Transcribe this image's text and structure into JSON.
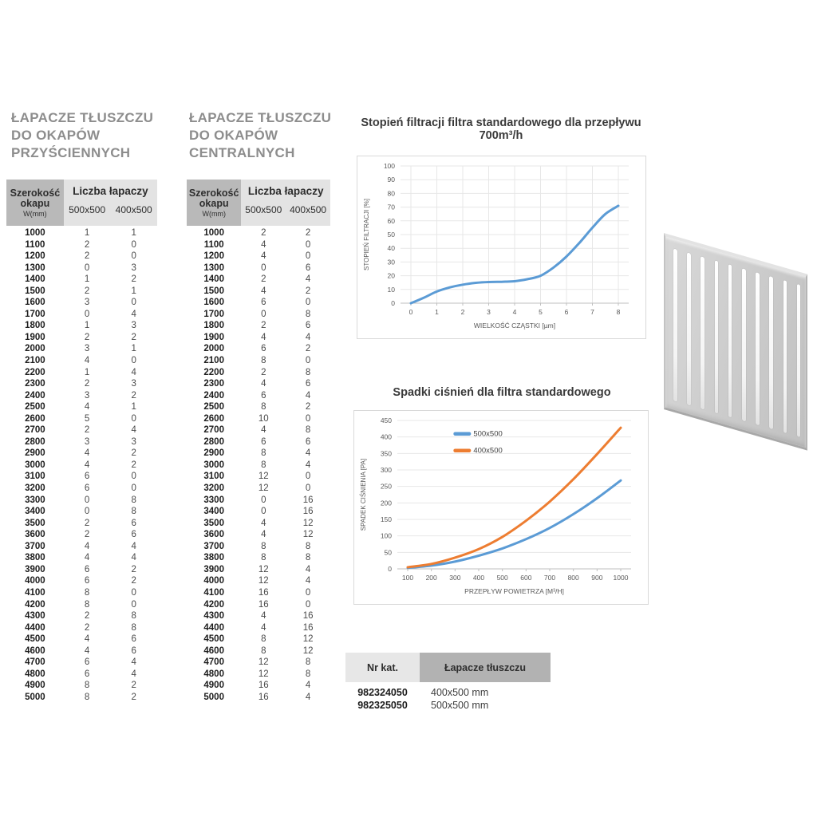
{
  "accent_colors": {
    "blue": "#5b9bd5",
    "orange": "#ed7d31",
    "header_dark": "#b9b9b9",
    "header_light": "#e3e3e3"
  },
  "hood_tables": [
    {
      "title_line1": "ŁAPACZE TŁUSZCZU",
      "title_line2": "DO OKAPÓW",
      "title_line3": "PRZYŚCIENNYCH",
      "header": {
        "col1_title": "Szerokość okapu",
        "col1_sub": "W(mm)",
        "group": "Liczba łapaczy",
        "col2": "500x500",
        "col3": "400x500"
      },
      "rows": [
        [
          1000,
          1,
          1
        ],
        [
          1100,
          2,
          0
        ],
        [
          1200,
          2,
          0
        ],
        [
          1300,
          0,
          3
        ],
        [
          1400,
          1,
          2
        ],
        [
          1500,
          2,
          1
        ],
        [
          1600,
          3,
          0
        ],
        [
          1700,
          0,
          4
        ],
        [
          1800,
          1,
          3
        ],
        [
          1900,
          2,
          2
        ],
        [
          2000,
          3,
          1
        ],
        [
          2100,
          4,
          0
        ],
        [
          2200,
          1,
          4
        ],
        [
          2300,
          2,
          3
        ],
        [
          2400,
          3,
          2
        ],
        [
          2500,
          4,
          1
        ],
        [
          2600,
          5,
          0
        ],
        [
          2700,
          2,
          4
        ],
        [
          2800,
          3,
          3
        ],
        [
          2900,
          4,
          2
        ],
        [
          3000,
          4,
          2
        ],
        [
          3100,
          6,
          0
        ],
        [
          3200,
          6,
          0
        ],
        [
          3300,
          0,
          8
        ],
        [
          3400,
          0,
          8
        ],
        [
          3500,
          2,
          6
        ],
        [
          3600,
          2,
          6
        ],
        [
          3700,
          4,
          4
        ],
        [
          3800,
          4,
          4
        ],
        [
          3900,
          6,
          2
        ],
        [
          4000,
          6,
          2
        ],
        [
          4100,
          8,
          0
        ],
        [
          4200,
          8,
          0
        ],
        [
          4300,
          2,
          8
        ],
        [
          4400,
          2,
          8
        ],
        [
          4500,
          4,
          6
        ],
        [
          4600,
          4,
          6
        ],
        [
          4700,
          6,
          4
        ],
        [
          4800,
          6,
          4
        ],
        [
          4900,
          8,
          2
        ],
        [
          5000,
          8,
          2
        ]
      ]
    },
    {
      "title_line1": "ŁAPACZE TŁUSZCZU",
      "title_line2": "DO OKAPÓW",
      "title_line3": "CENTRALNYCH",
      "header": {
        "col1_title": "Szerokość okapu",
        "col1_sub": "W(mm)",
        "group": "Liczba łapaczy",
        "col2": "500x500",
        "col3": "400x500"
      },
      "rows": [
        [
          1000,
          2,
          2
        ],
        [
          1100,
          4,
          0
        ],
        [
          1200,
          4,
          0
        ],
        [
          1300,
          0,
          6
        ],
        [
          1400,
          2,
          4
        ],
        [
          1500,
          4,
          2
        ],
        [
          1600,
          6,
          0
        ],
        [
          1700,
          0,
          8
        ],
        [
          1800,
          2,
          6
        ],
        [
          1900,
          4,
          4
        ],
        [
          2000,
          6,
          2
        ],
        [
          2100,
          8,
          0
        ],
        [
          2200,
          2,
          8
        ],
        [
          2300,
          4,
          6
        ],
        [
          2400,
          6,
          4
        ],
        [
          2500,
          8,
          2
        ],
        [
          2600,
          10,
          0
        ],
        [
          2700,
          4,
          8
        ],
        [
          2800,
          6,
          6
        ],
        [
          2900,
          8,
          4
        ],
        [
          3000,
          8,
          4
        ],
        [
          3100,
          12,
          0
        ],
        [
          3200,
          12,
          0
        ],
        [
          3300,
          0,
          16
        ],
        [
          3400,
          0,
          16
        ],
        [
          3500,
          4,
          12
        ],
        [
          3600,
          4,
          12
        ],
        [
          3700,
          8,
          8
        ],
        [
          3800,
          8,
          8
        ],
        [
          3900,
          12,
          4
        ],
        [
          4000,
          12,
          4
        ],
        [
          4100,
          16,
          0
        ],
        [
          4200,
          16,
          0
        ],
        [
          4300,
          4,
          16
        ],
        [
          4400,
          4,
          16
        ],
        [
          4500,
          8,
          12
        ],
        [
          4600,
          8,
          12
        ],
        [
          4700,
          12,
          8
        ],
        [
          4800,
          12,
          8
        ],
        [
          4900,
          16,
          4
        ],
        [
          5000,
          16,
          4
        ]
      ]
    }
  ],
  "chart_data": [
    {
      "type": "line",
      "title": "Stopień filtracji filtra standardowego dla przepływu 700m³/h",
      "xlabel": "WIELKOŚĆ CZĄSTKI [µm]",
      "ylabel": "STOPIEŃ FILTRACJI [%]",
      "xlim": [
        0,
        8
      ],
      "ylim": [
        0,
        100
      ],
      "x_ticks": [
        0,
        1,
        2,
        3,
        4,
        5,
        6,
        7,
        8
      ],
      "y_ticks": [
        0,
        10,
        20,
        30,
        40,
        50,
        60,
        70,
        80,
        90,
        100
      ],
      "grid": "both",
      "legend": false,
      "series": [
        {
          "color": "#5b9bd5",
          "x": [
            0,
            0.5,
            1,
            1.5,
            2,
            2.5,
            3,
            3.5,
            4,
            4.5,
            5,
            5.5,
            6,
            6.5,
            7,
            7.5,
            8
          ],
          "y": [
            0,
            4,
            8.5,
            11.5,
            13.5,
            14.8,
            15.4,
            15.6,
            16,
            17.5,
            20,
            26,
            34,
            44,
            55,
            65,
            71
          ]
        }
      ]
    },
    {
      "type": "line",
      "title": "Spadki ciśnień dla filtra standardowego",
      "xlabel": "PRZEPŁYW POWIETRZA [M³/H]",
      "ylabel": "SPADEK CIŚNIENIA [PA]",
      "xlim": [
        100,
        1000
      ],
      "ylim": [
        0,
        450
      ],
      "x_ticks": [
        100,
        200,
        300,
        400,
        500,
        600,
        700,
        800,
        900,
        1000
      ],
      "y_ticks": [
        0,
        50,
        100,
        150,
        200,
        250,
        300,
        350,
        400,
        450
      ],
      "grid": "horizontal",
      "legend": true,
      "legend_position": "inside-top",
      "series": [
        {
          "name": "500x500",
          "color": "#5b9bd5",
          "x": [
            100,
            200,
            300,
            400,
            500,
            600,
            700,
            800,
            900,
            1000
          ],
          "y": [
            3,
            10,
            22,
            40,
            62,
            90,
            124,
            166,
            214,
            268
          ]
        },
        {
          "name": "400x500",
          "color": "#ed7d31",
          "x": [
            100,
            200,
            300,
            400,
            500,
            600,
            700,
            800,
            900,
            1000
          ],
          "y": [
            5,
            15,
            34,
            60,
            97,
            146,
            204,
            272,
            348,
            428
          ]
        }
      ]
    }
  ],
  "catalog_table": {
    "header_col1": "Nr kat.",
    "header_col2": "Łapacze tłuszczu",
    "rows": [
      {
        "nr": "982324050",
        "size": "400x500 mm"
      },
      {
        "nr": "982325050",
        "size": "500x500 mm"
      }
    ]
  },
  "filter_image": {
    "description": "grease filter panel",
    "slots": 10
  }
}
